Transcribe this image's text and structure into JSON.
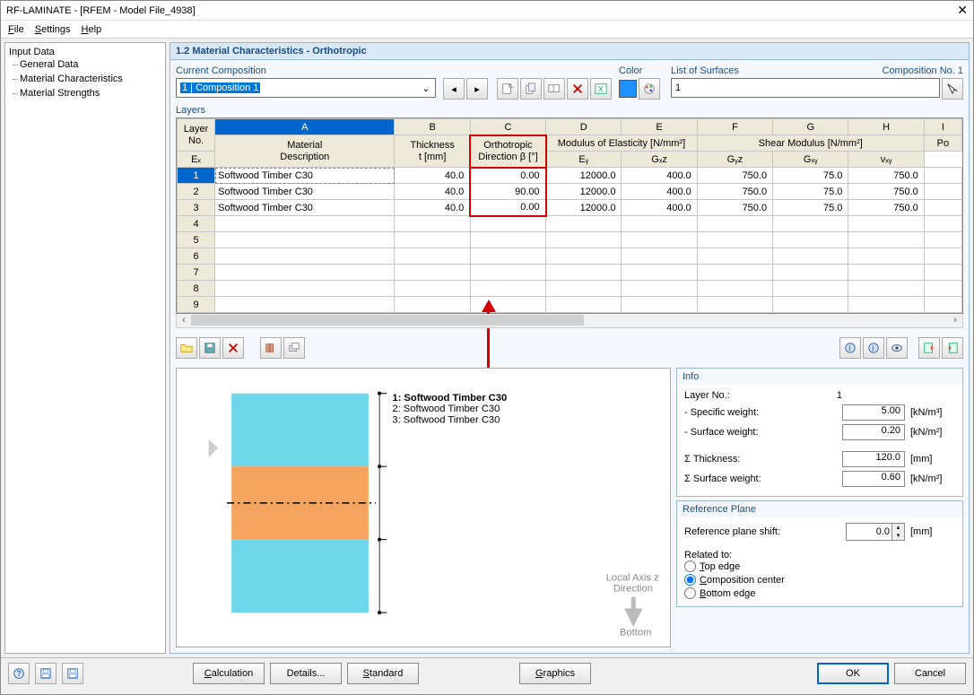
{
  "window": {
    "title": "RF-LAMINATE - [RFEM - Model File_4938]",
    "close": "✕"
  },
  "menu": {
    "file": "File",
    "settings": "Settings",
    "help": "Help"
  },
  "nav": {
    "root": "Input Data",
    "items": [
      "General Data",
      "Material Characteristics",
      "Material Strengths"
    ],
    "selected": 1
  },
  "panel_title": "1.2 Material Characteristics - Orthotropic",
  "composition": {
    "label": "Current Composition",
    "value": "1 | Composition 1"
  },
  "color": {
    "label": "Color"
  },
  "surfaces": {
    "label": "List of Surfaces",
    "compno": "Composition No. 1",
    "value": "1"
  },
  "layers": {
    "label": "Layers",
    "col_letters": [
      "A",
      "B",
      "C",
      "D",
      "E",
      "F",
      "G",
      "H",
      "I"
    ],
    "selected_col_letter": 0,
    "group_headers": {
      "layer_no": "Layer\nNo.",
      "material": "Material\nDescription",
      "thickness": "Thickness\nt [mm]",
      "ortho": "Orthotropic\nDirection β [°]",
      "modulus": "Modulus of Elasticity [N/mm²]",
      "shear": "Shear Modulus [N/mm²]",
      "po": "Po"
    },
    "sub_headers": {
      "ex": "Eₓ",
      "ey": "Eᵧ",
      "gxz": "Gₓz",
      "gyz": "Gᵧz",
      "gxy": "Gₓᵧ",
      "vxy": "νₓᵧ"
    },
    "rows": [
      {
        "no": 1,
        "mat": "Softwood Timber C30",
        "t": "40.0",
        "beta": "0.00",
        "ex": "12000.0",
        "ey": "400.0",
        "gxz": "750.0",
        "gyz": "75.0",
        "gxy": "750.0"
      },
      {
        "no": 2,
        "mat": "Softwood Timber C30",
        "t": "40.0",
        "beta": "90.00",
        "ex": "12000.0",
        "ey": "400.0",
        "gxz": "750.0",
        "gyz": "75.0",
        "gxy": "750.0"
      },
      {
        "no": 3,
        "mat": "Softwood Timber C30",
        "t": "40.0",
        "beta": "0.00",
        "ex": "12000.0",
        "ey": "400.0",
        "gxz": "750.0",
        "gyz": "75.0",
        "gxy": "750.0"
      }
    ],
    "empty_rows": [
      4,
      5,
      6,
      7,
      8,
      9
    ]
  },
  "preview": {
    "legend": [
      "1: Softwood Timber C30",
      "2: Softwood Timber C30",
      "3: Softwood Timber C30"
    ],
    "legend_bold": 0,
    "axis1": "Local Axis z",
    "axis2": "Direction",
    "bottom": "Bottom",
    "layer_colors": [
      "#6dd6e8",
      "#f5a460",
      "#6dd6e8"
    ]
  },
  "info": {
    "title": "Info",
    "layer_no_lbl": "Layer No.:",
    "layer_no": "1",
    "spec_w_lbl": "- Specific weight:",
    "spec_w": "5.00",
    "spec_w_u": "[kN/m³]",
    "surf_w_lbl": "- Surface weight:",
    "surf_w": "0.20",
    "surf_w_u": "[kN/m²]",
    "thick_lbl": "Σ Thickness:",
    "thick": "120.0",
    "thick_u": "[mm]",
    "sumw_lbl": "Σ Surface weight:",
    "sumw": "0.60",
    "sumw_u": "[kN/m²]"
  },
  "refplane": {
    "title": "Reference Plane",
    "shift_lbl": "Reference plane shift:",
    "shift": "0.0",
    "shift_u": "[mm]",
    "related_lbl": "Related to:",
    "opts": [
      "Top edge",
      "Composition center",
      "Bottom edge"
    ],
    "sel": 1
  },
  "footer": {
    "calc": "Calculation",
    "details": "Details...",
    "standard": "Standard",
    "graphics": "Graphics",
    "ok": "OK",
    "cancel": "Cancel"
  }
}
